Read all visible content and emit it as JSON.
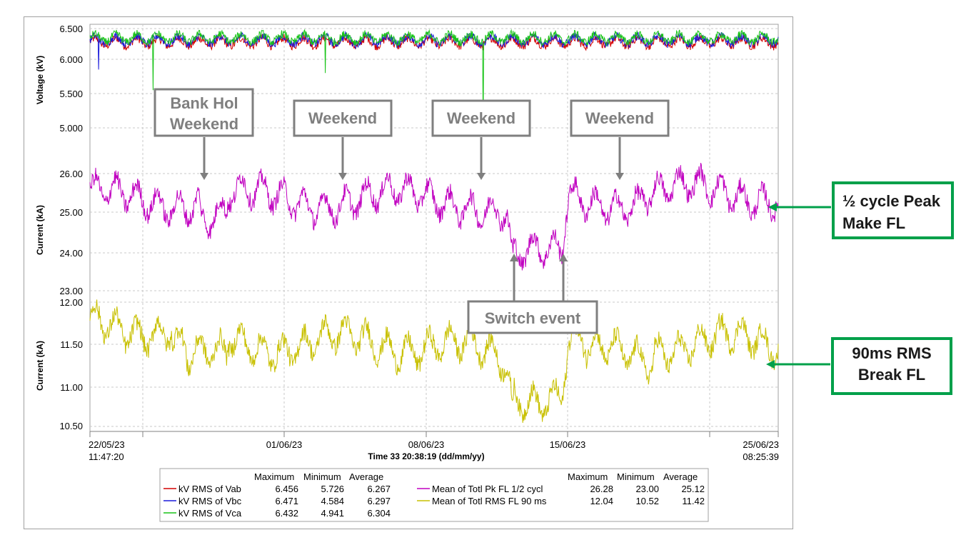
{
  "colors": {
    "vab": "#d40000",
    "vbc": "#1a1adb",
    "vca": "#18c418",
    "peak": "#c000c0",
    "rms": "#c8c000",
    "annotation_box": "#7f7f7f",
    "green_box": "#00a04a"
  },
  "chart_data": [
    {
      "type": "line",
      "ylabel": "Voltage (kV)",
      "ylim": [
        5.0,
        6.5
      ],
      "yticks": [
        "6.500",
        "6.000",
        "5.500",
        "5.000"
      ],
      "series": [
        {
          "name": "kV RMS of Vab",
          "min": 5.726,
          "max": 6.456,
          "avg": 6.267
        },
        {
          "name": "kV RMS of Vbc",
          "min": 4.584,
          "max": 6.471,
          "avg": 6.297
        },
        {
          "name": "kV RMS of Vca",
          "min": 4.941,
          "max": 6.432,
          "avg": 6.304
        }
      ]
    },
    {
      "type": "line",
      "ylabel": "Current (kA)",
      "ylim": [
        23.0,
        26.0
      ],
      "yticks": [
        "26.00",
        "25.00",
        "24.00",
        "23.00"
      ],
      "series": [
        {
          "name": "Mean of Totl Pk FL 1/2 cycl",
          "min": 23.0,
          "max": 26.28,
          "avg": 25.12
        }
      ]
    },
    {
      "type": "line",
      "ylabel": "Current (kA)",
      "ylim": [
        10.5,
        12.0
      ],
      "yticks": [
        "12.00",
        "11.50",
        "11.00",
        "10.50"
      ],
      "series": [
        {
          "name": "Mean of Totl RMS FL 90 ms",
          "min": 10.52,
          "max": 12.04,
          "avg": 11.42
        }
      ]
    }
  ],
  "xaxis": {
    "start_date": "22/05/23",
    "start_time": "11:47:20",
    "end_date": "25/06/23",
    "end_time": "08:25:39",
    "ticks": [
      "01/06/23",
      "08/06/23",
      "15/06/23"
    ],
    "title": "Time 33 20:38:19 (dd/mm/yy)"
  },
  "annotations": {
    "bank_hol_line1": "Bank Hol",
    "bank_hol_line2": "Weekend",
    "weekend": "Weekend",
    "switch_event": "Switch event",
    "peak_line1": "½ cycle Peak",
    "peak_line2": "Make FL",
    "rms_line1": "90ms RMS",
    "rms_line2": "Break FL"
  },
  "legend": {
    "headers": [
      "Maximum",
      "Minimum",
      "Average"
    ],
    "left": [
      {
        "label": "kV RMS of Vab",
        "max": "6.456",
        "min": "5.726",
        "avg": "6.267"
      },
      {
        "label": "kV RMS of Vbc",
        "max": "6.471",
        "min": "4.584",
        "avg": "6.297"
      },
      {
        "label": "kV RMS of Vca",
        "max": "6.432",
        "min": "4.941",
        "avg": "6.304"
      }
    ],
    "right": [
      {
        "label": "Mean of Totl Pk FL 1/2 cycl",
        "max": "26.28",
        "min": "23.00",
        "avg": "25.12"
      },
      {
        "label": "Mean of Totl RMS FL 90 ms",
        "max": "12.04",
        "min": "10.52",
        "avg": "11.42"
      }
    ]
  }
}
